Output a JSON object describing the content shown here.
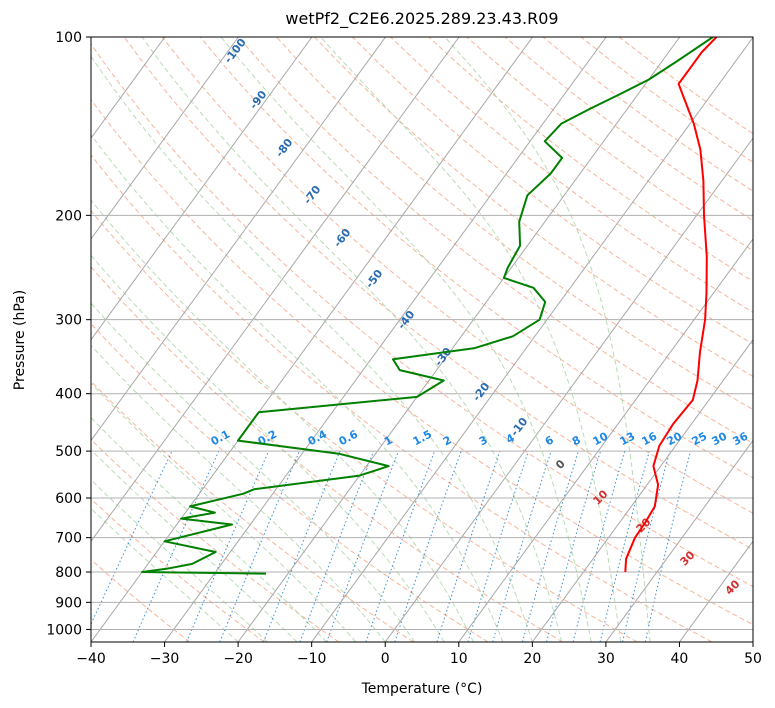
{
  "chart_data": {
    "type": "line",
    "title": "wetPf2_C2E6.2025.289.23.43.R09",
    "xlabel": "Temperature (°C)",
    "ylabel": "Pressure (hPa)",
    "xlim": [
      -40,
      50
    ],
    "ylim": [
      1050,
      100
    ],
    "y_scale": "log",
    "x_ticks": [
      -40,
      -30,
      -20,
      -10,
      0,
      10,
      20,
      30,
      40,
      50
    ],
    "x_tick_labels": [
      "−40",
      "−30",
      "−20",
      "−10",
      "0",
      "10",
      "20",
      "30",
      "40",
      "50"
    ],
    "y_ticks": [
      100,
      200,
      300,
      400,
      500,
      600,
      700,
      800,
      900,
      1000
    ],
    "y_tick_labels": [
      "100",
      "200",
      "300",
      "400",
      "500",
      "600",
      "700",
      "800",
      "900",
      "1000"
    ],
    "grid": true,
    "background_lines": {
      "dry_adiabat_labels": [],
      "mixing_ratio_labels": [
        "0.1",
        "0.2",
        "0.4",
        "0.6",
        "1",
        "1.5",
        "2",
        "3",
        "4",
        "6",
        "8",
        "10",
        "13",
        "16",
        "20",
        "25",
        "30",
        "36"
      ],
      "isotherm_labels_blue": [
        "-100",
        "-90",
        "-80",
        "-70",
        "-60",
        "-50",
        "-40",
        "-30",
        "-20",
        "-10"
      ],
      "isotherm_labels_red": [
        "10",
        "20",
        "30",
        "40"
      ],
      "isotherm_label_zero": "0"
    },
    "series": [
      {
        "role": "temperature",
        "color": "#ff0000",
        "points": [
          [
            25.7,
            800
          ],
          [
            24.5,
            760
          ],
          [
            23.6,
            700
          ],
          [
            23.5,
            660
          ],
          [
            23.2,
            620
          ],
          [
            21.5,
            570
          ],
          [
            19.0,
            530
          ],
          [
            17.8,
            490
          ],
          [
            17.5,
            450
          ],
          [
            17.8,
            410
          ],
          [
            16.5,
            380
          ],
          [
            14.0,
            340
          ],
          [
            11.5,
            300
          ],
          [
            9.0,
            270
          ],
          [
            5.5,
            235
          ],
          [
            1.0,
            200
          ],
          [
            -2.5,
            175
          ],
          [
            -6.0,
            155
          ],
          [
            -9.5,
            140
          ],
          [
            -13.0,
            128
          ],
          [
            -15.5,
            120
          ],
          [
            -15.5,
            112
          ],
          [
            -15.5,
            106
          ],
          [
            -15.0,
            100
          ]
        ]
      },
      {
        "role": "dewpoint",
        "color": "#008000",
        "points": [
          [
            -23.0,
            805
          ],
          [
            -40.0,
            800
          ],
          [
            -37.0,
            790
          ],
          [
            -34.0,
            775
          ],
          [
            -32.0,
            740
          ],
          [
            -40.0,
            710
          ],
          [
            -32.5,
            665
          ],
          [
            -40.0,
            650
          ],
          [
            -36.0,
            635
          ],
          [
            -40.0,
            620
          ],
          [
            -34.0,
            590
          ],
          [
            -33.0,
            580
          ],
          [
            -20.0,
            550
          ],
          [
            -17.0,
            530
          ],
          [
            -25.0,
            505
          ],
          [
            -40.0,
            480
          ],
          [
            -40.0,
            430
          ],
          [
            -20.0,
            405
          ],
          [
            -18.0,
            380
          ],
          [
            -25.0,
            365
          ],
          [
            -27.0,
            350
          ],
          [
            -17.0,
            335
          ],
          [
            -13.0,
            320
          ],
          [
            -11.0,
            300
          ],
          [
            -12.0,
            280
          ],
          [
            -15.0,
            265
          ],
          [
            -20.0,
            255
          ],
          [
            -20.5,
            245
          ],
          [
            -21.0,
            225
          ],
          [
            -23.5,
            205
          ],
          [
            -25.0,
            185
          ],
          [
            -24.0,
            170
          ],
          [
            -24.0,
            160
          ],
          [
            -28.0,
            150
          ],
          [
            -27.5,
            140
          ],
          [
            -25.0,
            132
          ],
          [
            -22.5,
            125
          ],
          [
            -20.0,
            118
          ],
          [
            -18.0,
            110
          ],
          [
            -15.5,
            100
          ]
        ]
      }
    ]
  }
}
